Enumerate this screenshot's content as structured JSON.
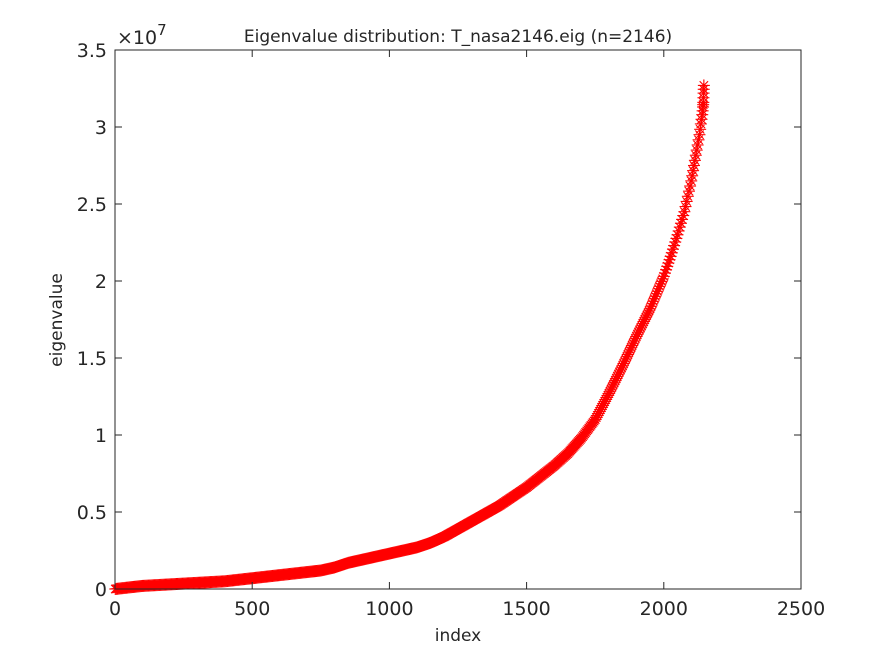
{
  "chart_data": {
    "type": "scatter",
    "title": "Eigenvalue distribution: T_nasa2146.eig (n=2146)",
    "xlabel": "index",
    "ylabel": "eigenvalue",
    "xlim": [
      0,
      2500
    ],
    "ylim": [
      0,
      3.5
    ],
    "y_multiplier": "×10",
    "y_exponent": "7",
    "x_ticks": [
      0,
      500,
      1000,
      1500,
      2000,
      2500
    ],
    "x_tick_labels": [
      "0",
      "500",
      "1000",
      "1500",
      "2000",
      "2500"
    ],
    "y_ticks": [
      0,
      0.5,
      1,
      1.5,
      2,
      2.5,
      3,
      3.5
    ],
    "y_tick_labels": [
      "0",
      "0.5",
      "1",
      "1.5",
      "2",
      "2.5",
      "3",
      "3.5"
    ],
    "grid": false,
    "marker": "asterisk",
    "marker_color": "#ff0000",
    "series": [
      {
        "x": [
          1,
          50,
          100,
          200,
          300,
          400,
          500,
          600,
          700,
          750,
          800,
          850,
          900,
          950,
          1000,
          1050,
          1100,
          1150,
          1200,
          1250,
          1300,
          1350,
          1400,
          1450,
          1500,
          1550,
          1600,
          1650,
          1700,
          1750,
          1800,
          1850,
          1900,
          1950,
          2000,
          2025,
          2050,
          2075,
          2100,
          2110,
          2120,
          2130,
          2135,
          2140,
          2143,
          2144,
          2145,
          2146
        ],
        "y": [
          0.0,
          0.01,
          0.02,
          0.03,
          0.04,
          0.05,
          0.07,
          0.09,
          0.11,
          0.12,
          0.14,
          0.17,
          0.19,
          0.21,
          0.23,
          0.25,
          0.27,
          0.3,
          0.34,
          0.39,
          0.44,
          0.49,
          0.54,
          0.6,
          0.66,
          0.73,
          0.8,
          0.88,
          0.98,
          1.1,
          1.27,
          1.45,
          1.64,
          1.82,
          2.03,
          2.16,
          2.3,
          2.45,
          2.65,
          2.75,
          2.85,
          2.95,
          3.02,
          3.08,
          3.13,
          3.16,
          3.22,
          3.27
        ]
      }
    ]
  }
}
